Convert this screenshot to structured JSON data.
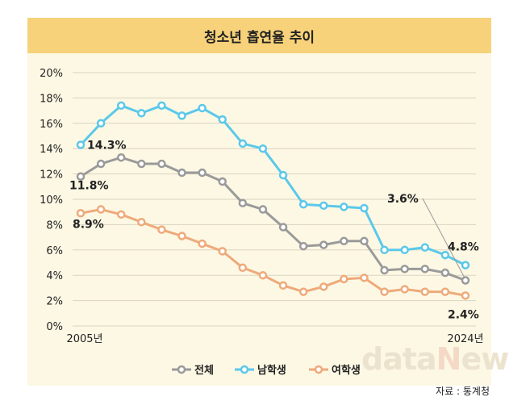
{
  "watermark": "dataNews",
  "source": "자료 : 통계청",
  "chart_data": {
    "type": "line",
    "title": "청소년 흡연율 추이",
    "x_start_label": "2005년",
    "x_end_label": "2024년",
    "x": [
      2005,
      2006,
      2007,
      2008,
      2009,
      2010,
      2011,
      2012,
      2013,
      2014,
      2015,
      2016,
      2017,
      2018,
      2019,
      2020,
      2021,
      2022,
      2023,
      2024
    ],
    "y_ticks": [
      "0%",
      "2%",
      "4%",
      "6%",
      "8%",
      "10%",
      "12%",
      "14%",
      "16%",
      "18%",
      "20%"
    ],
    "ylim": [
      0,
      20
    ],
    "series": [
      {
        "name": "전체",
        "color": "#9a9a9a",
        "values": [
          11.8,
          12.8,
          13.3,
          12.8,
          12.8,
          12.1,
          12.1,
          11.4,
          9.7,
          9.2,
          7.8,
          6.3,
          6.4,
          6.7,
          6.7,
          4.4,
          4.5,
          4.5,
          4.2,
          3.6
        ]
      },
      {
        "name": "남학생",
        "color": "#5cc8ea",
        "values": [
          14.3,
          16.0,
          17.4,
          16.8,
          17.4,
          16.6,
          17.2,
          16.3,
          14.4,
          14.0,
          11.9,
          9.6,
          9.5,
          9.4,
          9.3,
          6.0,
          6.0,
          6.2,
          5.6,
          4.8
        ]
      },
      {
        "name": "여학생",
        "color": "#eeaa7a",
        "values": [
          8.9,
          9.2,
          8.8,
          8.2,
          7.6,
          7.1,
          6.5,
          5.9,
          4.6,
          4.0,
          3.2,
          2.7,
          3.1,
          3.7,
          3.8,
          2.7,
          2.9,
          2.7,
          2.7,
          2.4
        ]
      }
    ],
    "annotations": [
      {
        "text": "14.3%",
        "series": 1,
        "point": 0
      },
      {
        "text": "11.8%",
        "series": 0,
        "point": 0
      },
      {
        "text": "8.9%",
        "series": 2,
        "point": 0
      },
      {
        "text": "3.6%",
        "series": 0,
        "point": 19
      },
      {
        "text": "4.8%",
        "series": 1,
        "point": 19
      },
      {
        "text": "2.4%",
        "series": 2,
        "point": 19
      }
    ]
  }
}
